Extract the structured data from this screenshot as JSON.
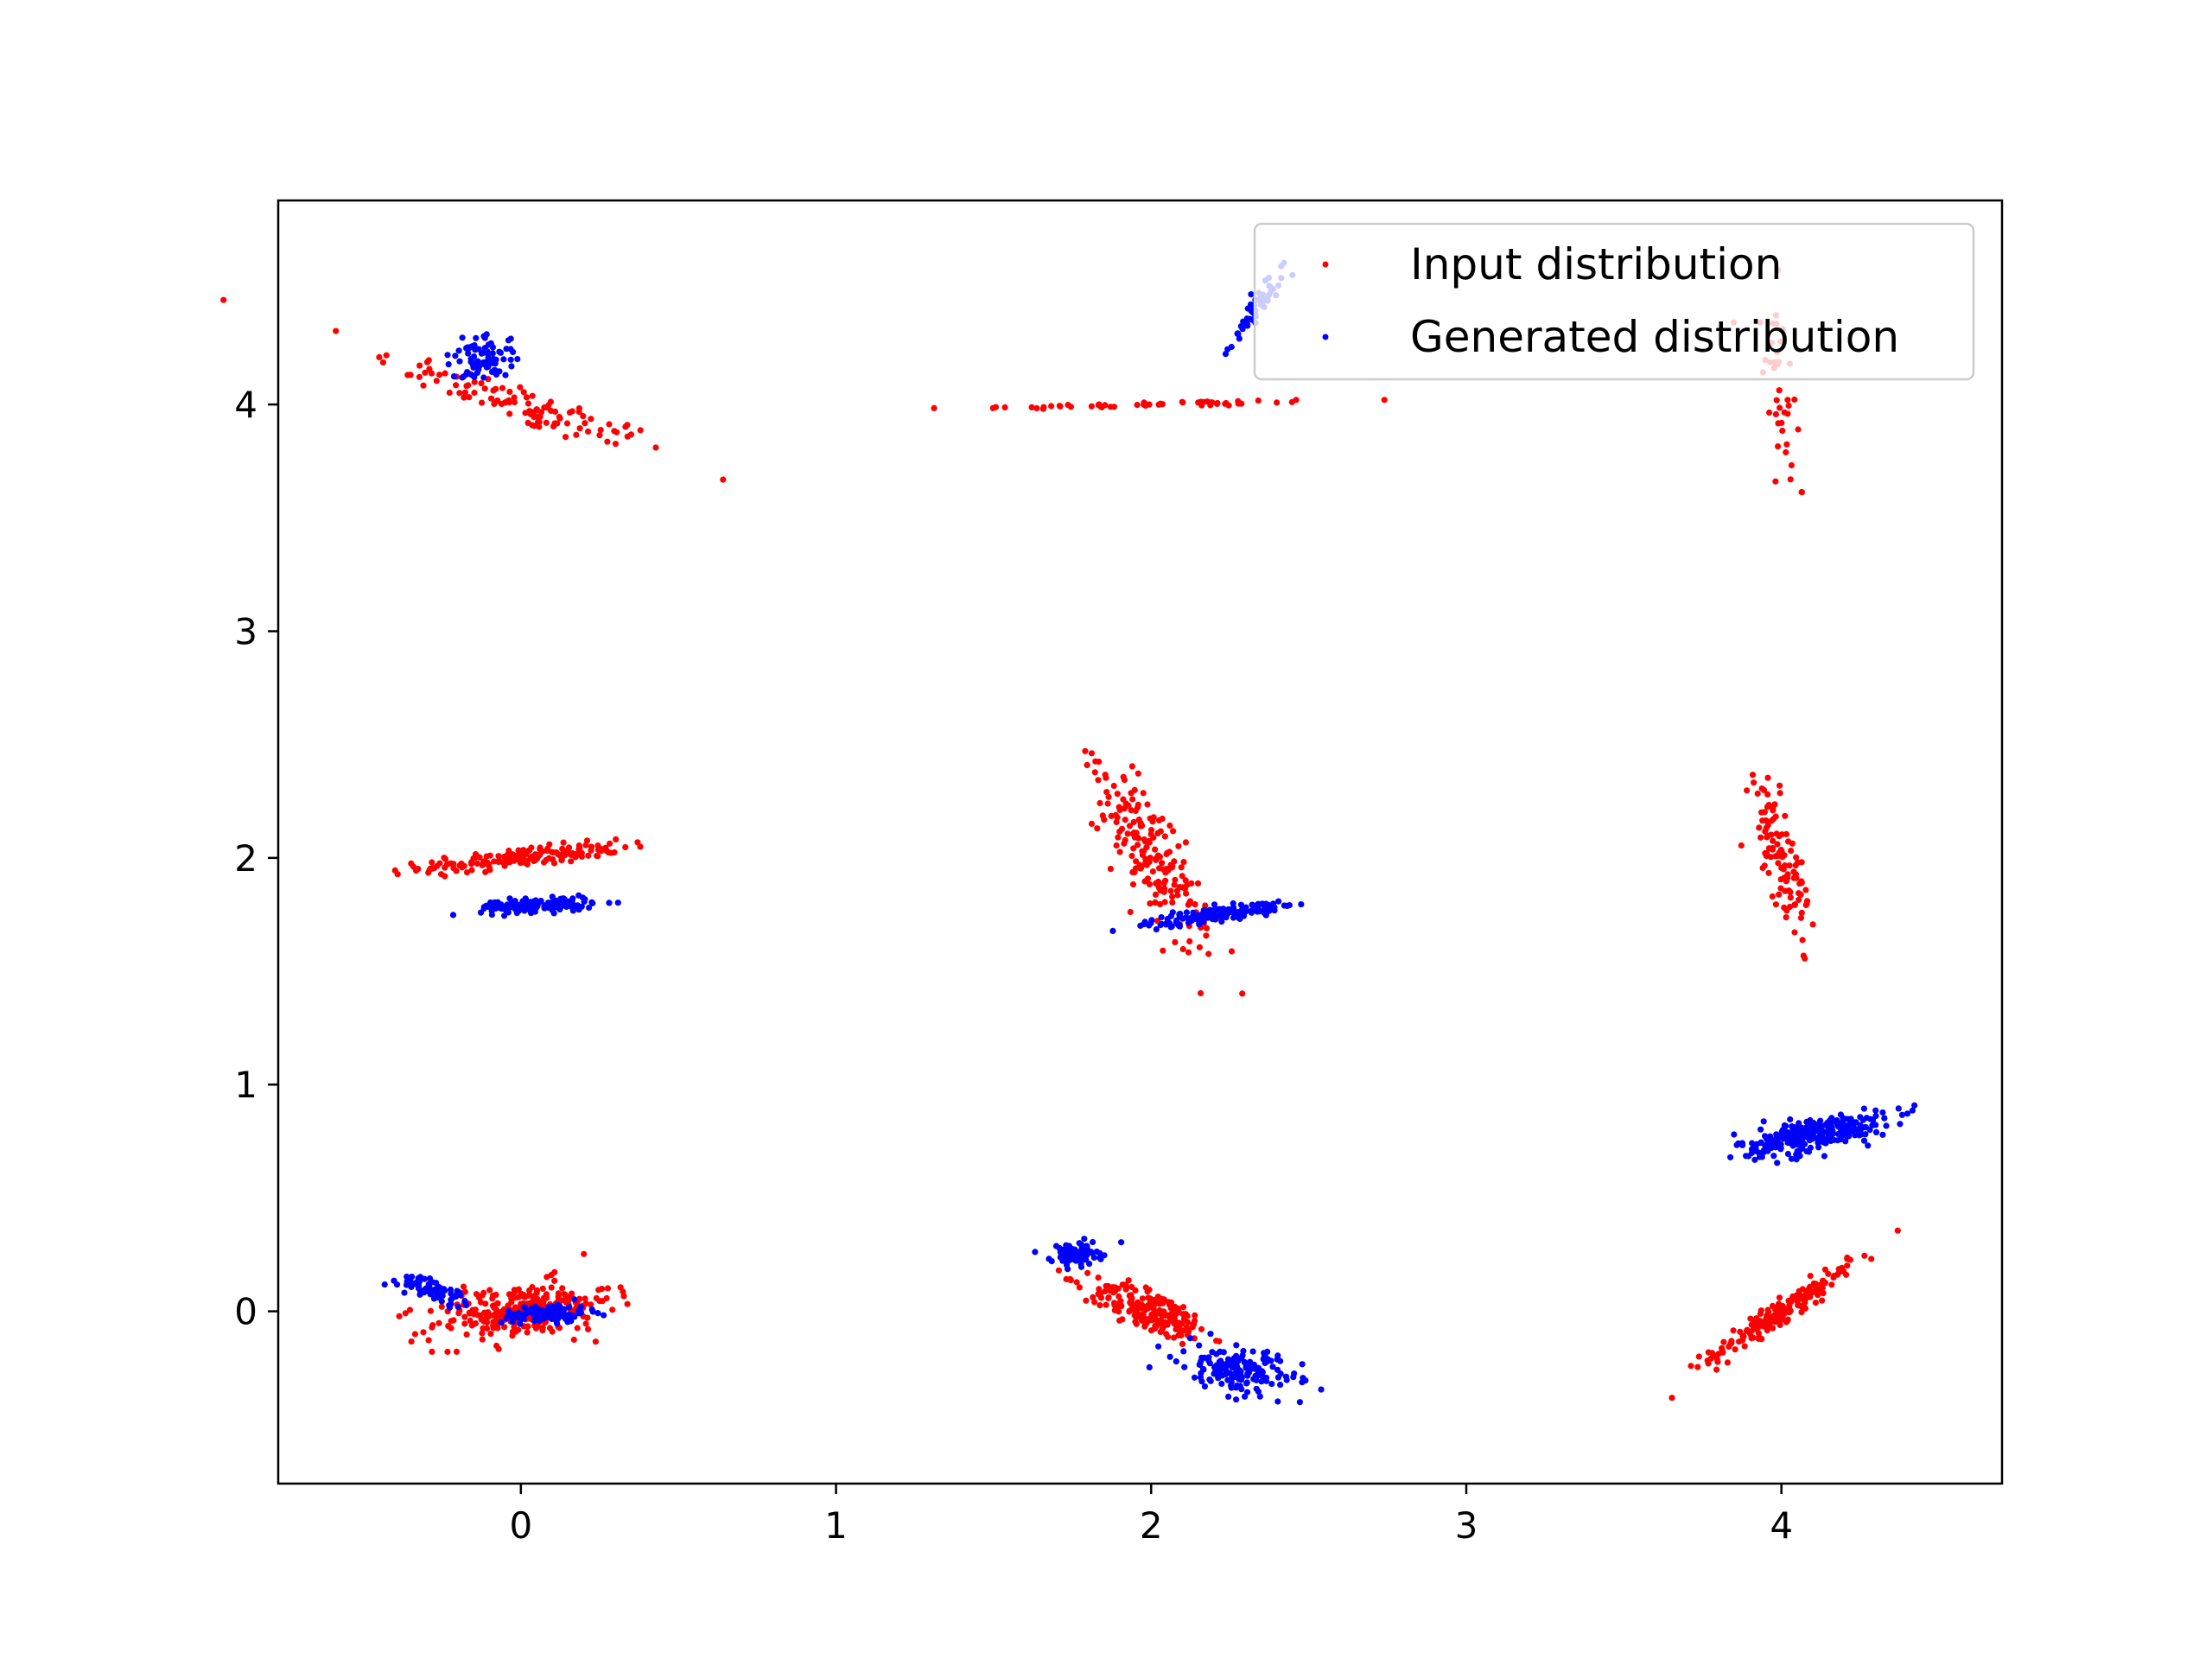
{
  "chart_data": {
    "type": "scatter",
    "title": "",
    "xlabel": "",
    "ylabel": "",
    "xlim": [
      -0.77,
      4.7
    ],
    "ylim": [
      -0.76,
      4.9
    ],
    "x_ticks": [
      0,
      1,
      2,
      3,
      4
    ],
    "y_ticks": [
      0,
      1,
      2,
      3,
      4
    ],
    "x_tick_labels": [
      "0",
      "1",
      "2",
      "3",
      "4"
    ],
    "y_tick_labels": [
      "0",
      "1",
      "2",
      "3",
      "4"
    ],
    "grid": false,
    "legend_position": "top-right",
    "series": [
      {
        "name": "Input distribution",
        "color": "#ff0000",
        "clusters": [
          {
            "center": [
              0.0,
              4.0
            ],
            "n": 110,
            "spread_major": 0.26,
            "spread_minor": 0.04,
            "angle_deg": -25
          },
          {
            "center": [
              2.0,
              4.0
            ],
            "n": 55,
            "spread_major": 0.32,
            "spread_minor": 0.006,
            "angle_deg": 1.5
          },
          {
            "center": [
              4.0,
              4.0
            ],
            "n": 40,
            "spread_major": 0.24,
            "spread_minor": 0.03,
            "angle_deg": -86
          },
          {
            "center": [
              0.0,
              2.0
            ],
            "n": 170,
            "spread_major": 0.16,
            "spread_minor": 0.02,
            "angle_deg": 8
          },
          {
            "center": [
              2.0,
              2.0
            ],
            "n": 190,
            "spread_major": 0.22,
            "spread_minor": 0.05,
            "angle_deg": -70
          },
          {
            "center": [
              4.0,
              2.0
            ],
            "n": 110,
            "spread_major": 0.15,
            "spread_minor": 0.03,
            "angle_deg": -80
          },
          {
            "center": [
              0.0,
              0.0
            ],
            "n": 260,
            "spread_major": 0.15,
            "spread_minor": 0.06,
            "angle_deg": 12
          },
          {
            "center": [
              2.0,
              0.0
            ],
            "n": 220,
            "spread_major": 0.11,
            "spread_minor": 0.04,
            "angle_deg": -30
          },
          {
            "center": [
              4.0,
              0.0
            ],
            "n": 200,
            "spread_major": 0.16,
            "spread_minor": 0.02,
            "angle_deg": 43
          }
        ]
      },
      {
        "name": "Generated distribution",
        "color": "#0000ff",
        "clusters": [
          {
            "center": [
              -0.12,
              4.2
            ],
            "n": 90,
            "spread_major": 0.05,
            "spread_minor": 0.05,
            "angle_deg": -40
          },
          {
            "center": [
              2.33,
              4.42
            ],
            "n": 60,
            "spread_major": 0.09,
            "spread_minor": 0.015,
            "angle_deg": 65
          },
          {
            "center": [
              0.05,
              1.79
            ],
            "n": 160,
            "spread_major": 0.09,
            "spread_minor": 0.015,
            "angle_deg": 3
          },
          {
            "center": [
              2.2,
              1.75
            ],
            "n": 160,
            "spread_major": 0.11,
            "spread_minor": 0.015,
            "angle_deg": 12
          },
          {
            "center": [
              4.1,
              0.78
            ],
            "n": 300,
            "spread_major": 0.12,
            "spread_minor": 0.035,
            "angle_deg": 15
          },
          {
            "center": [
              -0.27,
              0.09
            ],
            "n": 70,
            "spread_major": 0.06,
            "spread_minor": 0.02,
            "angle_deg": -22
          },
          {
            "center": [
              0.08,
              -0.01
            ],
            "n": 110,
            "spread_major": 0.07,
            "spread_minor": 0.02,
            "angle_deg": 3
          },
          {
            "center": [
              1.76,
              0.25
            ],
            "n": 90,
            "spread_major": 0.04,
            "spread_minor": 0.025,
            "angle_deg": 0
          },
          {
            "center": [
              2.28,
              -0.26
            ],
            "n": 170,
            "spread_major": 0.09,
            "spread_minor": 0.05,
            "angle_deg": -20
          }
        ]
      }
    ]
  }
}
